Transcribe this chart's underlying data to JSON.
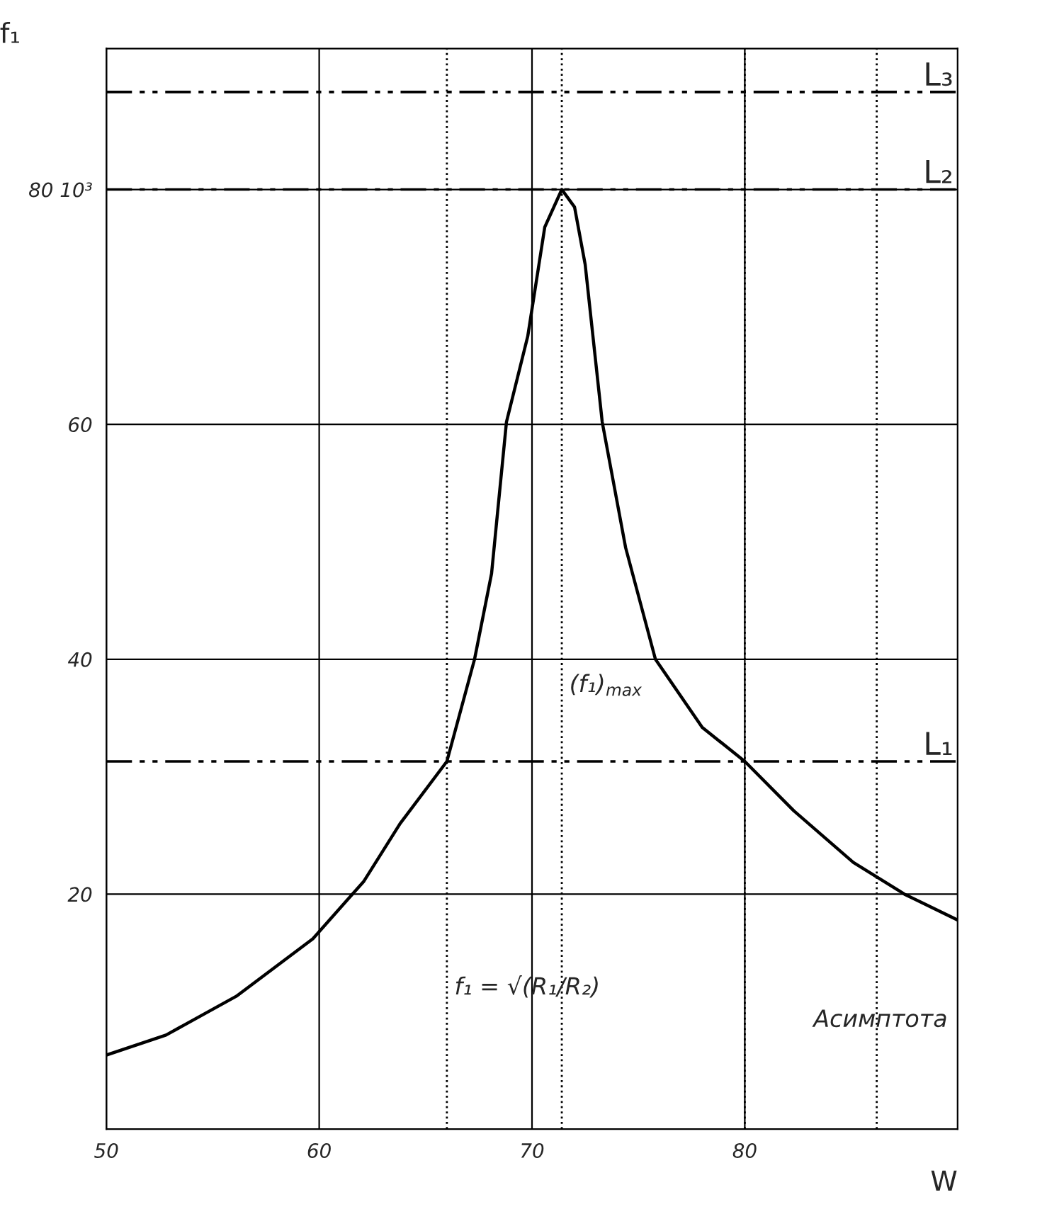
{
  "chart_data": {
    "type": "line",
    "xlabel": "W",
    "ylabel": "f₁",
    "x": [
      50,
      52.8,
      56.1,
      59.7,
      62.1,
      63.8,
      66.0,
      67.3,
      68.1,
      68.8,
      69.8,
      70.6,
      71.4,
      72.0,
      72.5,
      73.3,
      74.4,
      75.8,
      78.0,
      80.0,
      82.3,
      85.1,
      87.5,
      90
    ],
    "series": [
      {
        "color": "#000000",
        "values": [
          6.3,
          8.0,
          11.3,
          16.2,
          21.1,
          26.0,
          31.3,
          40.0,
          47.3,
          60.2,
          67.5,
          76.8,
          80.0,
          78.5,
          73.6,
          60.2,
          49.5,
          40.0,
          34.2,
          31.3,
          27.1,
          22.7,
          20.0,
          17.8
        ]
      }
    ],
    "xlim": [
      50,
      90
    ],
    "xticks": [
      50,
      60,
      70,
      80
    ],
    "ylim": [
      0,
      92
    ],
    "yticks": [
      20,
      40,
      60,
      {
        "value": 80,
        "label": "80 10³"
      }
    ],
    "grid": true,
    "marker": "none",
    "line_style": "solid",
    "ref_lines": [
      {
        "axis": "y",
        "value": 88.3,
        "label": "L₃",
        "color": "#000000",
        "line_style": "dashed"
      },
      {
        "axis": "y",
        "value": 80,
        "label": "L₂",
        "color": "#000000",
        "line_style": "dashed"
      },
      {
        "axis": "y",
        "value": 31.3,
        "label": "L₁",
        "color": "#000000",
        "line_style": "dashed"
      },
      {
        "axis": "x",
        "value": 66.0,
        "label": "f₁ = √(R₁/R₂)",
        "color": "#000000",
        "line_style": "dotted"
      },
      {
        "axis": "x",
        "value": 71.4,
        "label": "(f₁)$_{max}$",
        "color": "#000000",
        "line_style": "dotted"
      },
      {
        "axis": "x",
        "value": 80.0,
        "label": null,
        "color": "#000000",
        "line_style": "dotted"
      },
      {
        "axis": "x",
        "value": 86.2,
        "label": "Асимптота",
        "color": "#000000",
        "line_style": "dotted"
      }
    ]
  }
}
